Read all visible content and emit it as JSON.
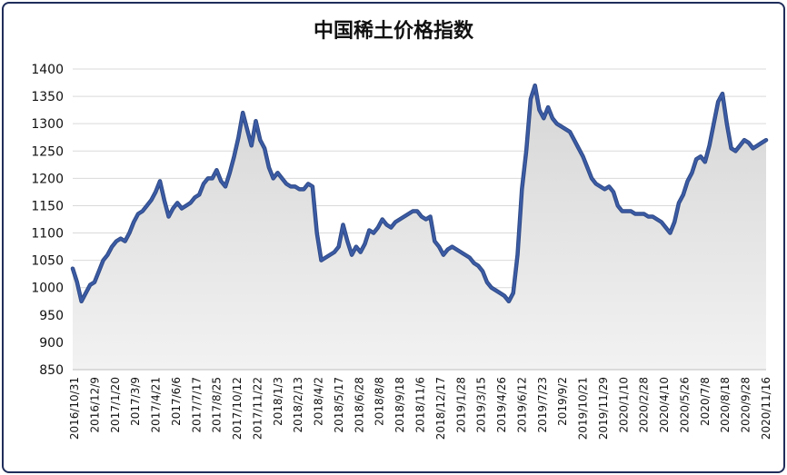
{
  "chart_data": {
    "type": "area",
    "title": "中国稀土价格指数",
    "xlabel": "",
    "ylabel": "",
    "ylim": [
      850,
      1400
    ],
    "yticks": [
      850,
      900,
      950,
      1000,
      1050,
      1100,
      1150,
      1200,
      1250,
      1300,
      1350,
      1400
    ],
    "grid": true,
    "legend": "none",
    "colors": {
      "line": "#3b5ba5",
      "fill": "#e6e6e6",
      "border": "#1f2d5a",
      "grid": "#d9d9d9"
    },
    "x_tick_labels": [
      "2016/10/31",
      "2016/12/9",
      "2017/1/20",
      "2017/3/9",
      "2017/4/21",
      "2017/6/6",
      "2017/7/17",
      "2017/8/25",
      "2017/10/12",
      "2017/11/22",
      "2018/1/3",
      "2018/2/13",
      "2018/4/2",
      "2018/5/17",
      "2018/6/28",
      "2018/8/8",
      "2018/9/18",
      "2018/11/6",
      "2018/12/17",
      "2019/1/28",
      "2019/3/15",
      "2019/4/26",
      "2019/6/12",
      "2019/7/23",
      "2019/9/2",
      "2019/10/21",
      "2019/11/29",
      "2020/1/10",
      "2020/2/28",
      "2020/4/10",
      "2020/5/26",
      "2020/7/8",
      "2020/8/18",
      "2020/9/28",
      "2020/11/16"
    ],
    "series": [
      {
        "values": [
          1035,
          1010,
          975,
          990,
          1005,
          1010,
          1030,
          1050,
          1060,
          1075,
          1085,
          1090,
          1085,
          1100,
          1120,
          1135,
          1140,
          1150,
          1160,
          1175,
          1195,
          1160,
          1130,
          1145,
          1155,
          1145,
          1150,
          1155,
          1165,
          1170,
          1190,
          1200,
          1200,
          1215,
          1195,
          1185,
          1210,
          1240,
          1275,
          1320,
          1290,
          1260,
          1305,
          1270,
          1255,
          1220,
          1200,
          1210,
          1200,
          1190,
          1185,
          1185,
          1180,
          1180,
          1190,
          1185,
          1100,
          1050,
          1055,
          1060,
          1065,
          1075,
          1115,
          1085,
          1060,
          1075,
          1065,
          1080,
          1105,
          1100,
          1110,
          1125,
          1115,
          1110,
          1120,
          1125,
          1130,
          1135,
          1140,
          1140,
          1130,
          1125,
          1130,
          1085,
          1075,
          1060,
          1070,
          1075,
          1070,
          1065,
          1060,
          1055,
          1045,
          1040,
          1030,
          1010,
          1000,
          995,
          990,
          985,
          975,
          990,
          1060,
          1180,
          1250,
          1345,
          1370,
          1325,
          1310,
          1330,
          1310,
          1300,
          1295,
          1290,
          1285,
          1270,
          1255,
          1240,
          1220,
          1200,
          1190,
          1185,
          1180,
          1185,
          1175,
          1150,
          1140,
          1140,
          1140,
          1135,
          1135,
          1135,
          1130,
          1130,
          1125,
          1120,
          1110,
          1100,
          1120,
          1155,
          1170,
          1195,
          1210,
          1235,
          1240,
          1230,
          1260,
          1300,
          1340,
          1355,
          1300,
          1255,
          1250,
          1260,
          1270,
          1265,
          1255,
          1260,
          1265,
          1270
        ]
      }
    ]
  }
}
